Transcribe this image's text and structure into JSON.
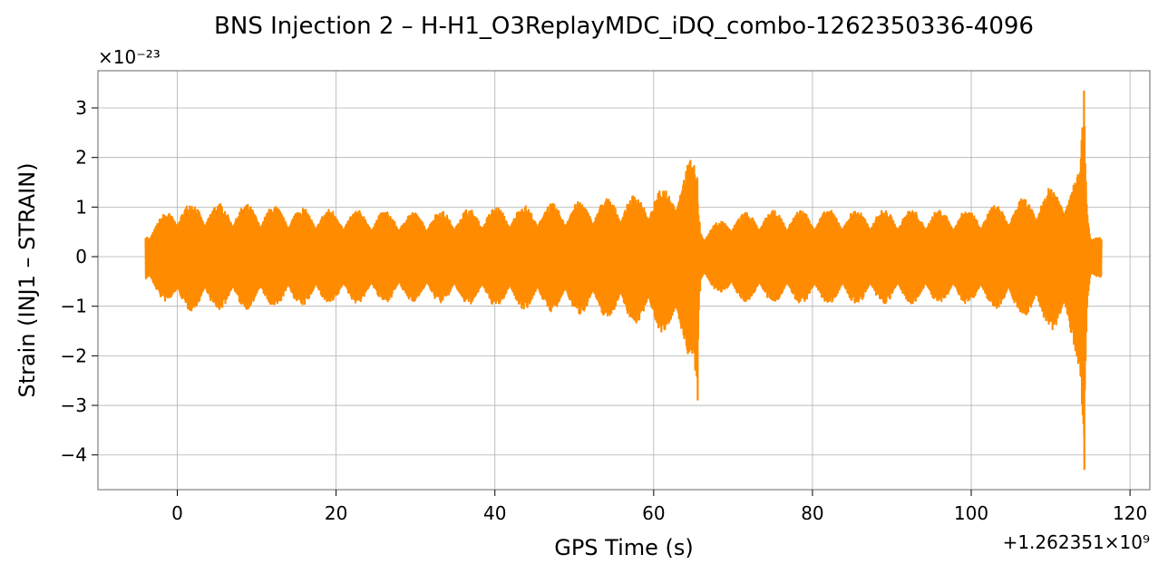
{
  "chart_data": {
    "type": "line",
    "title": "BNS Injection 2 – H-H1_O3ReplayMDC_iDQ_combo-1262350336-4096",
    "xlabel": "GPS Time (s)",
    "ylabel": "Strain (INJ1 – STRAIN)",
    "y_scale_factor_label": "×10⁻²³",
    "x_offset_label": "+1.262351×10⁹",
    "x_offset": 1262351000,
    "y_scale_factor": 1e-23,
    "xlim": [
      -10,
      122.5
    ],
    "ylim": [
      -4.7,
      3.75
    ],
    "x_ticks": [
      0,
      20,
      40,
      60,
      80,
      100,
      120
    ],
    "x_tick_labels": [
      "0",
      "20",
      "40",
      "60",
      "80",
      "100",
      "120"
    ],
    "y_ticks": [
      3,
      2,
      1,
      0,
      -1,
      -2,
      -3,
      -4
    ],
    "y_tick_labels": [
      "3",
      "2",
      "1",
      "0",
      "−1",
      "−2",
      "−3",
      "−4"
    ],
    "grid": true,
    "color": "#ff8c00",
    "series": [
      {
        "data_range_x": [
          -4,
          116.4
        ],
        "envelope_x": [
          -4,
          0,
          10,
          20,
          30,
          40,
          50,
          55,
          60,
          62,
          63,
          64,
          65,
          65.5,
          65.8,
          66.5,
          70,
          80,
          90,
          100,
          105,
          108,
          110,
          112,
          113,
          113.7,
          114.2,
          114.6,
          115,
          116.4
        ],
        "envelope_upper": [
          0.55,
          1.1,
          1.05,
          0.95,
          0.9,
          1.0,
          1.1,
          1.2,
          1.3,
          1.45,
          1.65,
          1.8,
          2.1,
          1.6,
          0.7,
          0.55,
          0.9,
          0.95,
          0.95,
          0.95,
          1.1,
          1.25,
          1.4,
          1.5,
          1.6,
          2.0,
          3.35,
          1.2,
          0.6,
          0.4
        ],
        "envelope_lower": [
          -0.6,
          -1.1,
          -1.05,
          -0.95,
          -0.9,
          -1.0,
          -1.15,
          -1.25,
          -1.45,
          -1.6,
          -1.8,
          -1.9,
          -2.2,
          -2.9,
          -0.7,
          -0.55,
          -0.9,
          -0.95,
          -0.95,
          -0.95,
          -1.1,
          -1.3,
          -1.5,
          -1.6,
          -1.9,
          -2.4,
          -4.3,
          -1.3,
          -0.6,
          -0.45
        ]
      }
    ]
  }
}
